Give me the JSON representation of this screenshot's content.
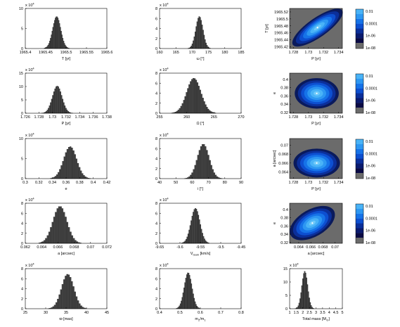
{
  "figure": {
    "layout": "5 rows x 3 columns of posterior histograms and 2D density maps"
  },
  "colorbar": {
    "ticks": [
      "0.01",
      "0.0001",
      "1e-06",
      "1e-08"
    ]
  },
  "chart_data": [
    {
      "type": "bar",
      "panel": "T",
      "xlabel": "T [yr]",
      "ylabel": "",
      "mult": "x 10",
      "mult_exp": "4",
      "xlim": [
        1965.4,
        1965.6
      ],
      "ylim": [
        0,
        10
      ],
      "xticks": [
        "1965.4",
        "1965.45",
        "1965.5",
        "1965.55",
        "1965.6"
      ],
      "yticks": [
        "0",
        "5",
        "10"
      ],
      "peak": {
        "mean": 1965.477,
        "sd": 0.01,
        "height": 8.0,
        "bin": 0.002
      }
    },
    {
      "type": "bar",
      "panel": "omega",
      "xlabel": "ω [°]",
      "ylabel": "",
      "mult": "x 10",
      "mult_exp": "4",
      "xlim": [
        160,
        185
      ],
      "ylim": [
        0,
        8
      ],
      "xticks": [
        "160",
        "165",
        "170",
        "175",
        "180",
        "185"
      ],
      "yticks": [
        "0",
        "2",
        "4",
        "6",
        "8"
      ],
      "peak": {
        "mean": 172.2,
        "sd": 1.1,
        "height": 6.4,
        "bin": 0.3
      }
    },
    {
      "type": "heatmap",
      "panel": "T-vs-P",
      "xlabel": "P [yr]",
      "ylabel": "T [yr]",
      "xlim": [
        1.7275,
        1.7345
      ],
      "ylim": [
        1965.415,
        1965.53
      ],
      "xticks": [
        "1.728",
        "1.73",
        "1.732",
        "1.734"
      ],
      "yticks": [
        "1965.42",
        "1965.44",
        "1965.46",
        "1965.48",
        "1965.5",
        "1965.52"
      ],
      "center": [
        1.7312,
        1965.475
      ],
      "angle": -35,
      "radii": [
        0.75,
        0.24
      ]
    },
    {
      "type": "bar",
      "panel": "P",
      "xlabel": "P [yr]",
      "ylabel": "",
      "mult": "x 10",
      "mult_exp": "4",
      "xlim": [
        1.726,
        1.738
      ],
      "ylim": [
        0,
        15
      ],
      "xticks": [
        "1.726",
        "1.728",
        "1.73",
        "1.732",
        "1.734",
        "1.736",
        "1.738"
      ],
      "yticks": [
        "0",
        "5",
        "10",
        "15"
      ],
      "peak": {
        "mean": 1.7307,
        "sd": 0.0007,
        "height": 10.2,
        "bin": 0.00016
      }
    },
    {
      "type": "bar",
      "panel": "Omega",
      "xlabel": "Ω [°]",
      "ylabel": "",
      "mult": "x 10",
      "mult_exp": "4",
      "xlim": [
        255,
        270
      ],
      "ylim": [
        0,
        8
      ],
      "xticks": [
        "255",
        "260",
        "265",
        "270"
      ],
      "yticks": [
        "0",
        "2",
        "4",
        "6",
        "8"
      ],
      "peak": {
        "mean": 261.3,
        "sd": 1.3,
        "height": 7.0,
        "bin": 0.25
      }
    },
    {
      "type": "heatmap",
      "panel": "e-vs-P",
      "xlabel": "P [yr]",
      "ylabel": "e",
      "xlim": [
        1.7275,
        1.7345
      ],
      "ylim": [
        0.318,
        0.415
      ],
      "xticks": [
        "1.728",
        "1.73",
        "1.732",
        "1.734"
      ],
      "yticks": [
        "0.32",
        "0.34",
        "0.36",
        "0.38",
        "0.4"
      ],
      "center": [
        1.7311,
        0.366
      ],
      "angle": 0,
      "radii": [
        0.55,
        0.38
      ]
    },
    {
      "type": "bar",
      "panel": "e",
      "xlabel": "e",
      "ylabel": "",
      "mult": "x 10",
      "mult_exp": "4",
      "xlim": [
        0.3,
        0.42
      ],
      "ylim": [
        0,
        10
      ],
      "xticks": [
        "0.3",
        "0.32",
        "0.34",
        "0.36",
        "0.38",
        "0.4",
        "0.42"
      ],
      "yticks": [
        "0",
        "5",
        "10"
      ],
      "peak": {
        "mean": 0.366,
        "sd": 0.0095,
        "height": 8.0,
        "bin": 0.0022
      }
    },
    {
      "type": "bar",
      "panel": "i",
      "xlabel": "i [°]",
      "ylabel": "",
      "mult": "x 10",
      "mult_exp": "4",
      "xlim": [
        40,
        90
      ],
      "ylim": [
        0,
        8
      ],
      "xticks": [
        "40",
        "50",
        "60",
        "70",
        "80",
        "90"
      ],
      "yticks": [
        "0",
        "2",
        "4",
        "6",
        "8"
      ],
      "peak": {
        "mean": 66.8,
        "sd": 3.6,
        "height": 6.9,
        "bin": 0.9
      }
    },
    {
      "type": "heatmap",
      "panel": "a-vs-P",
      "xlabel": "P [yr]",
      "ylabel": "a [arcsec]",
      "xlim": [
        1.7275,
        1.7345
      ],
      "ylim": [
        0.0625,
        0.0715
      ],
      "xticks": [
        "1.728",
        "1.73",
        "1.732",
        "1.734"
      ],
      "yticks": [
        "0.064",
        "0.066",
        "0.068",
        "0.07"
      ],
      "center": [
        1.7311,
        0.066
      ],
      "angle": 0,
      "radii": [
        0.58,
        0.36
      ]
    },
    {
      "type": "bar",
      "panel": "a",
      "xlabel": "a [arcsec]",
      "ylabel": "",
      "mult": "x 10",
      "mult_exp": "4",
      "xlim": [
        0.062,
        0.072
      ],
      "ylim": [
        0,
        8
      ],
      "xticks": [
        "0.062",
        "0.064",
        "0.066",
        "0.068",
        "0.07",
        "0.072"
      ],
      "yticks": [
        "0",
        "2",
        "4",
        "6",
        "8"
      ],
      "peak": {
        "mean": 0.06625,
        "sd": 0.00085,
        "height": 7.4,
        "bin": 0.0002
      }
    },
    {
      "type": "bar",
      "panel": "Vgam",
      "xlabel": "V",
      "xlabel_sub": "Gam",
      "xlabel_unit": " [km/s]",
      "ylabel": "",
      "mult": "x 10",
      "mult_exp": "4",
      "xlim": [
        -9.65,
        -9.45
      ],
      "ylim": [
        0,
        8
      ],
      "xticks": [
        "-9.65",
        "-9.6",
        "-9.55",
        "-9.5",
        "-9.45"
      ],
      "yticks": [
        "0",
        "2",
        "4",
        "6",
        "8"
      ],
      "peak": {
        "mean": -9.562,
        "sd": 0.011,
        "height": 7.0,
        "bin": 0.0025
      }
    },
    {
      "type": "heatmap",
      "panel": "e-vs-a",
      "xlabel": "a [arcsec]",
      "ylabel": "e",
      "xlim": [
        0.0625,
        0.0712
      ],
      "ylim": [
        0.318,
        0.415
      ],
      "xticks": [
        "0.064",
        "0.066",
        "0.068",
        "0.07"
      ],
      "yticks": [
        "0.32",
        "0.34",
        "0.36",
        "0.38",
        "0.4"
      ],
      "center": [
        0.06625,
        0.367
      ],
      "angle": -30,
      "radii": [
        0.62,
        0.34
      ]
    },
    {
      "type": "bar",
      "panel": "parallax",
      "xlabel": "ϖ [mas]",
      "ylabel": "",
      "mult": "x 10",
      "mult_exp": "4",
      "xlim": [
        25,
        45
      ],
      "ylim": [
        0,
        8
      ],
      "xticks": [
        "25",
        "30",
        "35",
        "40",
        "45"
      ],
      "yticks": [
        "0",
        "2",
        "4",
        "6",
        "8"
      ],
      "peak": {
        "mean": 35.4,
        "sd": 1.5,
        "height": 6.9,
        "bin": 0.38
      }
    },
    {
      "type": "bar",
      "panel": "mass-ratio",
      "xlabel": "m",
      "xlabel_sub": "2",
      "xlabel_mid": "/m",
      "xlabel_sub2": "1",
      "ylabel": "",
      "mult": "x 10",
      "mult_exp": "4",
      "xlim": [
        0.4,
        0.8
      ],
      "ylim": [
        0,
        8
      ],
      "xticks": [
        "0.4",
        "0.5",
        "0.6",
        "0.7",
        "0.8"
      ],
      "yticks": [
        "0",
        "2",
        "4",
        "6",
        "8"
      ],
      "peak": {
        "mean": 0.54,
        "sd": 0.019,
        "height": 7.2,
        "bin": 0.0045
      }
    },
    {
      "type": "bar",
      "panel": "total-mass",
      "xlabel": "Total mass [M",
      "xlabel_sub": "⊙",
      "xlabel_unit": "]",
      "ylabel": "",
      "mult": "x 10",
      "mult_exp": "4",
      "xlim": [
        1,
        5
      ],
      "ylim": [
        0,
        15
      ],
      "xticks": [
        "1",
        "1.5",
        "2",
        "2.5",
        "3",
        "3.5",
        "4",
        "4.5",
        "5"
      ],
      "yticks": [
        "0",
        "5",
        "10",
        "15"
      ],
      "peak": {
        "mean": 2.15,
        "sd": 0.22,
        "height": 14.0,
        "bin": 0.07
      }
    }
  ]
}
